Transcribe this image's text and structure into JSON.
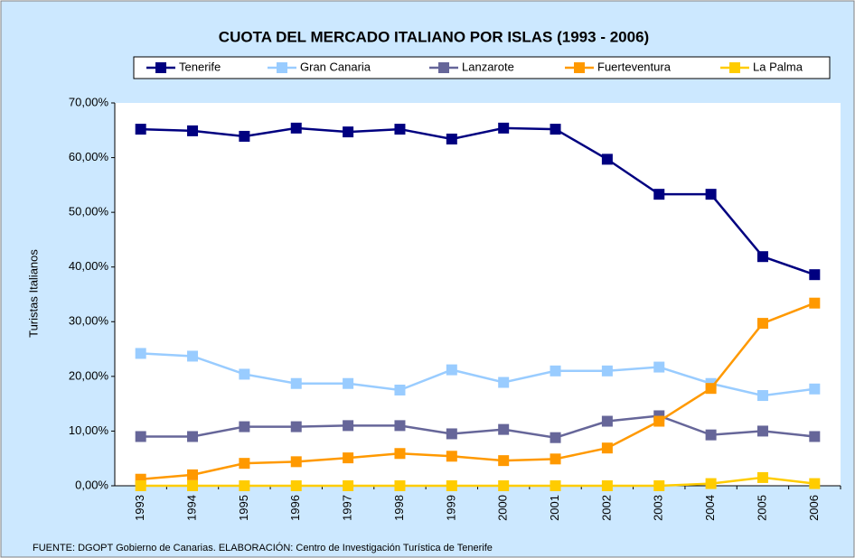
{
  "chart_data": {
    "type": "line",
    "title": "CUOTA DEL MERCADO ITALIANO POR ISLAS (1993 - 2006)",
    "y_label": "Turistas Italianos",
    "footer": "FUENTE: DGOPT Gobierno de Canarias. ELABORACIÓN: Centro de Investigación Turística de Tenerife",
    "categories": [
      "1993",
      "1994",
      "1995",
      "1996",
      "1997",
      "1998",
      "1999",
      "2000",
      "2001",
      "2002",
      "2003",
      "2004",
      "2005",
      "2006"
    ],
    "series": [
      {
        "name": "Tenerife",
        "color": "#000080",
        "values": [
          65.2,
          64.9,
          63.9,
          65.4,
          64.7,
          65.2,
          63.4,
          65.4,
          65.2,
          59.7,
          53.3,
          53.3,
          41.9,
          38.6
        ]
      },
      {
        "name": "Gran Canaria",
        "color": "#99ccff",
        "values": [
          24.2,
          23.7,
          20.4,
          18.7,
          18.7,
          17.5,
          21.2,
          18.9,
          21.0,
          21.0,
          21.7,
          18.7,
          16.5,
          17.7
        ]
      },
      {
        "name": "Lanzarote",
        "color": "#666699",
        "values": [
          9.0,
          9.0,
          10.8,
          10.8,
          11.0,
          11.0,
          9.5,
          10.3,
          8.8,
          11.8,
          12.8,
          9.3,
          10.0,
          9.0
        ]
      },
      {
        "name": "Fuerteventura",
        "color": "#ff9900",
        "values": [
          1.2,
          2.0,
          4.1,
          4.4,
          5.1,
          5.9,
          5.4,
          4.6,
          4.9,
          6.9,
          11.8,
          17.8,
          29.7,
          33.4
        ]
      },
      {
        "name": "La Palma",
        "color": "#ffcc00",
        "values": [
          0,
          0,
          0,
          0,
          0,
          0,
          0,
          0,
          0,
          0,
          0,
          0.4,
          1.5,
          0.4
        ]
      }
    ],
    "ylim": [
      0,
      70
    ],
    "yticks": [
      {
        "value": 0,
        "label": "0,00%"
      },
      {
        "value": 10,
        "label": "10,00%"
      },
      {
        "value": 20,
        "label": "20,00%"
      },
      {
        "value": 30,
        "label": "30,00%"
      },
      {
        "value": 40,
        "label": "40,00%"
      },
      {
        "value": 50,
        "label": "50,00%"
      },
      {
        "value": 60,
        "label": "60,00%"
      },
      {
        "value": 70,
        "label": "70,00%"
      }
    ],
    "grid": false,
    "legend": "top"
  }
}
